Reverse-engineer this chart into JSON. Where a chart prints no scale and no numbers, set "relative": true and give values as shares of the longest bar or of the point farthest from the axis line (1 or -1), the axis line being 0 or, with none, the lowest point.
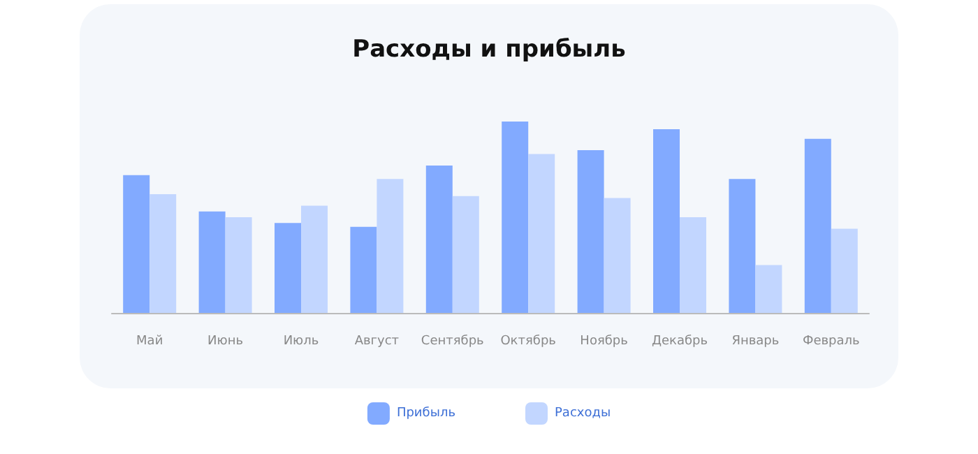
{
  "chart_data": {
    "type": "bar",
    "title": "Расходы и прибыль",
    "relative": true,
    "legend": "bottom",
    "grid": false,
    "categories": [
      "Май",
      "Июнь",
      "Июль",
      "Август",
      "Сентябрь",
      "Октябрь",
      "Ноябрь",
      "Декабрь",
      "Январь",
      "Февраль"
    ],
    "series": [
      {
        "name": "Прибыль",
        "color": "#82aaff",
        "values": [
          0.72,
          0.53,
          0.47,
          0.45,
          0.77,
          1.0,
          0.85,
          0.96,
          0.7,
          0.91
        ]
      },
      {
        "name": "Расходы",
        "color": "#c2d6ff",
        "values": [
          0.62,
          0.5,
          0.56,
          0.7,
          0.61,
          0.83,
          0.6,
          0.5,
          0.25,
          0.44
        ]
      }
    ]
  }
}
